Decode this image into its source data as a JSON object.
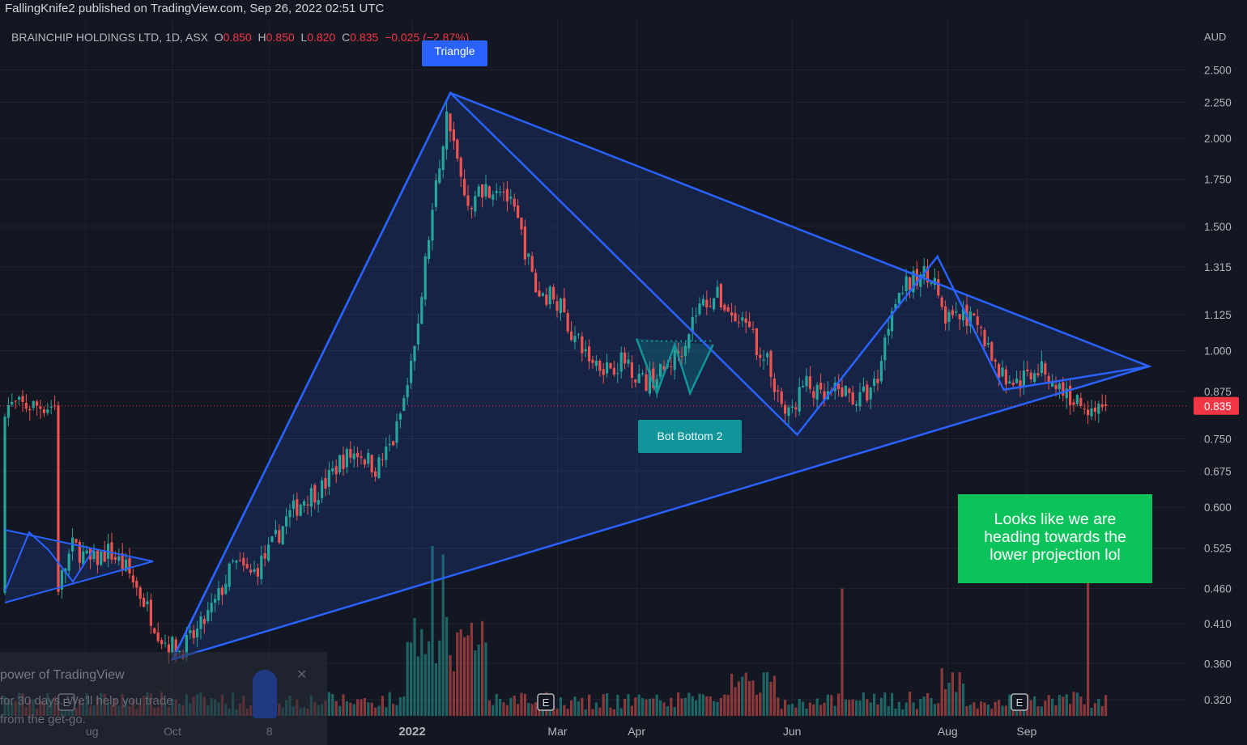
{
  "header": {
    "published": "FallingKnife2 published on TradingView.com, Sep 26, 2022 02:51 UTC"
  },
  "symbol": {
    "name": "BRAINCHIP HOLDINGS LTD, 1D, ASX",
    "o_label": "O",
    "o_value": "0.850",
    "h_label": "H",
    "h_value": "0.850",
    "l_label": "L",
    "l_value": "0.820",
    "c_label": "C",
    "c_value": "0.835",
    "change": "−0.025 (−2.87%)"
  },
  "annotations": {
    "triangle_label": "Triangle",
    "bottom_label": "Bot   Bottom 2",
    "note_text": "Looks like we are heading towards the lower projection        lol"
  },
  "promo": {
    "line1": "power of TradingView",
    "line2": "for 30 days. We'll help you trade",
    "line3": "from the get-go.",
    "close": "✕"
  },
  "colors": {
    "background": "#131722",
    "up": "#26a69a",
    "down": "#ef5350",
    "pattern": "#2962ff",
    "note_bg": "#0bc35a",
    "price_tag": "#f23645"
  },
  "chart_data": {
    "type": "candlestick",
    "symbol": "BRAINCHIP HOLDINGS LTD",
    "interval": "1D",
    "exchange": "ASX",
    "currency_label": "AUD",
    "y_scale": "log",
    "ylim": [
      0.29,
      2.9
    ],
    "y_ticks": [
      "2.500",
      "2.250",
      "2.000",
      "1.750",
      "1.500",
      "1.315",
      "1.125",
      "1.000",
      "0.875",
      "0.750",
      "0.675",
      "0.600",
      "0.525",
      "0.460",
      "0.410",
      "0.360",
      "0.320"
    ],
    "x_ticks": [
      "ug",
      "Oct",
      "8",
      "2022",
      "Mar",
      "Apr",
      "Jun",
      "Aug",
      "Sep"
    ],
    "last_price": "0.835",
    "earnings_markers": [
      "E",
      "E",
      "E"
    ],
    "close_path": [
      [
        "2021-08-16",
        0.45
      ],
      [
        "2021-08-23",
        0.53
      ],
      [
        "2021-08-30",
        0.5
      ],
      [
        "2021-09-06",
        0.52
      ],
      [
        "2021-09-13",
        0.49
      ],
      [
        "2021-09-20",
        0.44
      ],
      [
        "2021-09-27",
        0.39
      ],
      [
        "2021-10-04",
        0.375
      ],
      [
        "2021-10-11",
        0.4
      ],
      [
        "2021-10-18",
        0.44
      ],
      [
        "2021-10-25",
        0.5
      ],
      [
        "2021-11-01",
        0.48
      ],
      [
        "2021-11-08",
        0.52
      ],
      [
        "2021-11-15",
        0.58
      ],
      [
        "2021-11-22",
        0.62
      ],
      [
        "2021-11-29",
        0.64
      ],
      [
        "2021-12-06",
        0.7
      ],
      [
        "2021-12-13",
        0.72
      ],
      [
        "2021-12-20",
        0.68
      ],
      [
        "2021-12-27",
        0.75
      ],
      [
        "2022-01-03",
        0.95
      ],
      [
        "2022-01-10",
        1.5
      ],
      [
        "2022-01-17",
        2.2
      ],
      [
        "2022-01-24",
        1.6
      ],
      [
        "2022-01-31",
        1.7
      ],
      [
        "2022-02-07",
        1.72
      ],
      [
        "2022-02-14",
        1.5
      ],
      [
        "2022-02-21",
        1.2
      ],
      [
        "2022-02-28",
        1.2
      ],
      [
        "2022-03-07",
        1.05
      ],
      [
        "2022-03-14",
        0.97
      ],
      [
        "2022-03-21",
        0.95
      ],
      [
        "2022-03-28",
        0.97
      ],
      [
        "2022-04-04",
        0.9
      ],
      [
        "2022-04-11",
        0.93
      ],
      [
        "2022-04-18",
        1.0
      ],
      [
        "2022-04-25",
        1.15
      ],
      [
        "2022-05-02",
        1.2
      ],
      [
        "2022-05-09",
        1.12
      ],
      [
        "2022-05-16",
        1.05
      ],
      [
        "2022-05-23",
        0.95
      ],
      [
        "2022-05-30",
        0.8
      ],
      [
        "2022-06-06",
        0.9
      ],
      [
        "2022-06-13",
        0.85
      ],
      [
        "2022-06-20",
        0.88
      ],
      [
        "2022-06-27",
        0.85
      ],
      [
        "2022-07-04",
        0.9
      ],
      [
        "2022-07-11",
        1.2
      ],
      [
        "2022-07-18",
        1.25
      ],
      [
        "2022-07-25",
        1.3
      ],
      [
        "2022-08-01",
        1.1
      ],
      [
        "2022-08-08",
        1.12
      ],
      [
        "2022-08-15",
        1.05
      ],
      [
        "2022-08-22",
        0.92
      ],
      [
        "2022-08-29",
        0.9
      ],
      [
        "2022-09-05",
        0.95
      ],
      [
        "2022-09-12",
        0.9
      ],
      [
        "2022-09-19",
        0.85
      ],
      [
        "2022-09-26",
        0.835
      ]
    ],
    "patterns": [
      {
        "label": "Triangle",
        "points": [
          [
            "2021-10-01",
            0.365
          ],
          [
            "2022-01-18",
            2.32
          ],
          [
            "2022-06-03",
            0.76
          ],
          [
            "2022-07-28",
            1.36
          ],
          [
            "2022-08-23",
            0.88
          ],
          [
            "2022-10-19",
            0.95
          ]
        ]
      },
      {
        "label": "Bot   Bottom 2",
        "points": [
          [
            "2022-04-01",
            1.04
          ],
          [
            "2022-04-09",
            0.87
          ],
          [
            "2022-04-16",
            1.02
          ],
          [
            "2022-04-22",
            0.87
          ],
          [
            "2022-05-01",
            1.02
          ]
        ]
      }
    ]
  }
}
